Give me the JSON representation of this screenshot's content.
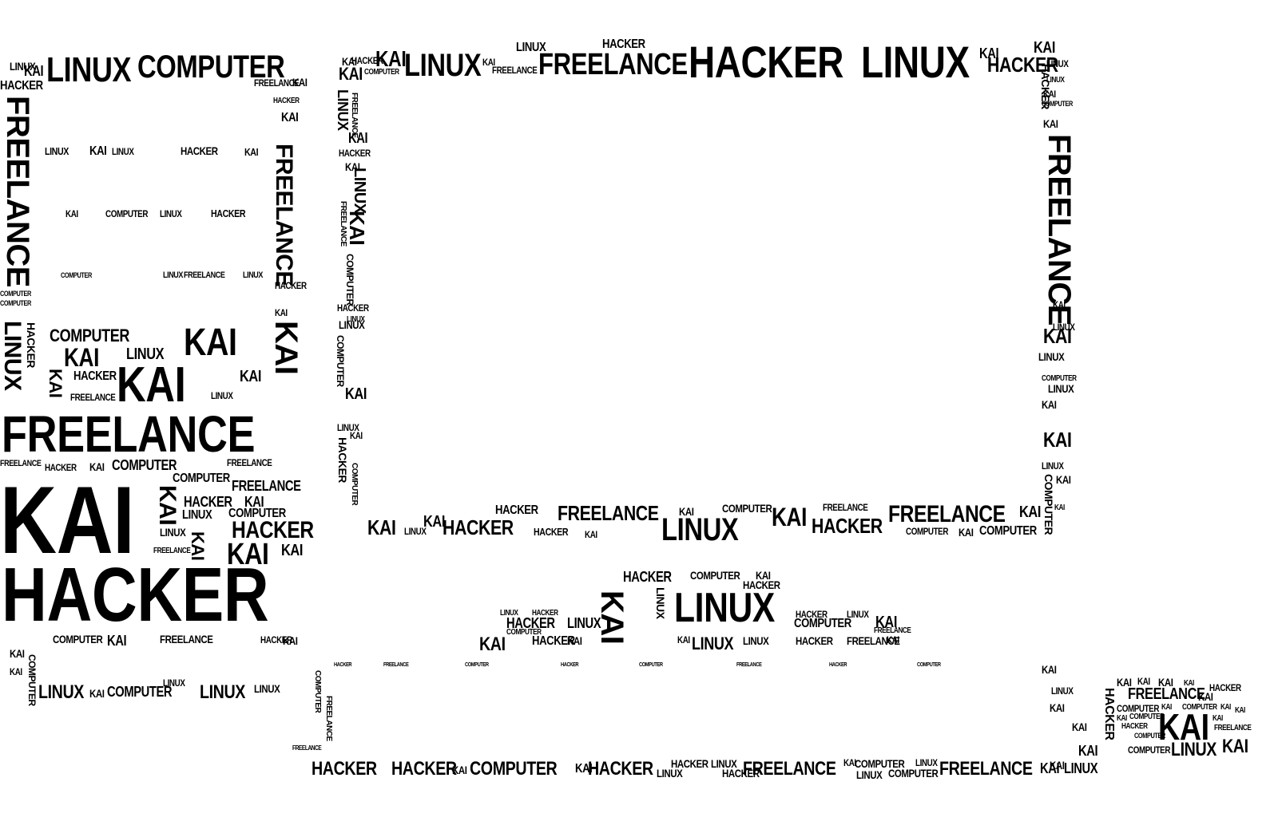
{
  "ink_color": "#000000",
  "background_color": "#ffffff",
  "words": {
    "kai": "KAI",
    "linux": "LINUX",
    "computer": "COMPUTER",
    "freelance": "FREELANCE",
    "hacker": "HACKER"
  }
}
